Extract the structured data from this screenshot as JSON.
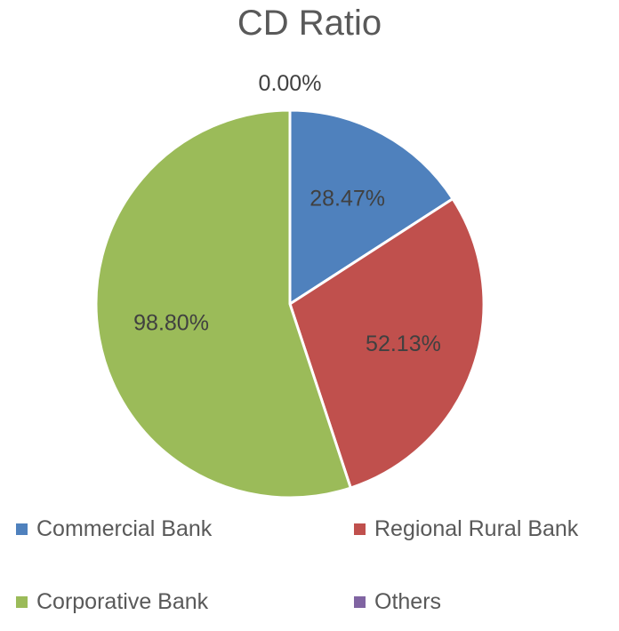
{
  "chart_data": {
    "type": "pie",
    "title": "CD Ratio",
    "categories": [
      "Commercial Bank",
      "Regional Rural Bank",
      "Corporative Bank",
      "Others"
    ],
    "values": [
      28.47,
      52.13,
      98.8,
      0.0
    ],
    "labels": [
      "28.47%",
      "52.13%",
      "98.80%",
      "0.00%"
    ],
    "colors": [
      "#4f81bd",
      "#c0504d",
      "#9bbb59",
      "#8064a2"
    ],
    "legend_position": "bottom"
  }
}
